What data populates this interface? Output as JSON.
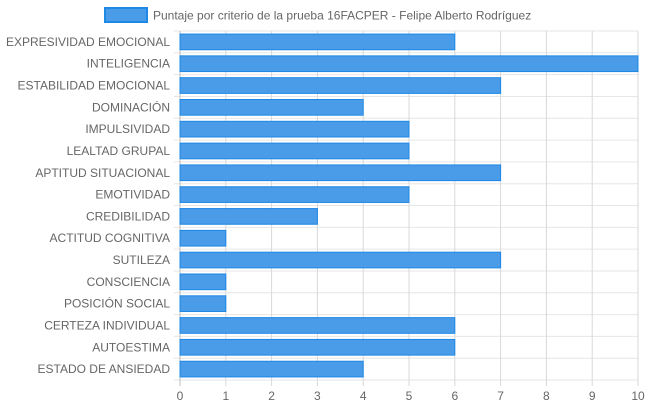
{
  "chart_data": {
    "type": "bar",
    "orientation": "horizontal",
    "categories": [
      "EXPRESIVIDAD EMOCIONAL",
      "INTELIGENCIA",
      "ESTABILIDAD EMOCIONAL",
      "DOMINACIÓN",
      "IMPULSIVIDAD",
      "LEALTAD GRUPAL",
      "APTITUD SITUACIONAL",
      "EMOTIVIDAD",
      "CREDIBILIDAD",
      "ACTITUD COGNITIVA",
      "SUTILEZA",
      "CONSCIENCIA",
      "POSICIÓN SOCIAL",
      "CERTEZA INDIVIDUAL",
      "AUTOESTIMA",
      "ESTADO DE ANSIEDAD"
    ],
    "series": [
      {
        "name": "Puntaje por criterio de la prueba 16FACPER - Felipe Alberto Rodríguez",
        "values": [
          6,
          10,
          7,
          4,
          5,
          5,
          7,
          5,
          3,
          1,
          7,
          1,
          1,
          6,
          6,
          4
        ],
        "color": "#4a9be8",
        "border_color": "#1e88e5"
      }
    ],
    "xlim": [
      0,
      10
    ],
    "xticks": [
      "0",
      "1",
      "2",
      "3",
      "4",
      "5",
      "6",
      "7",
      "8",
      "9",
      "10"
    ],
    "grid": true,
    "legend_position": "top"
  }
}
